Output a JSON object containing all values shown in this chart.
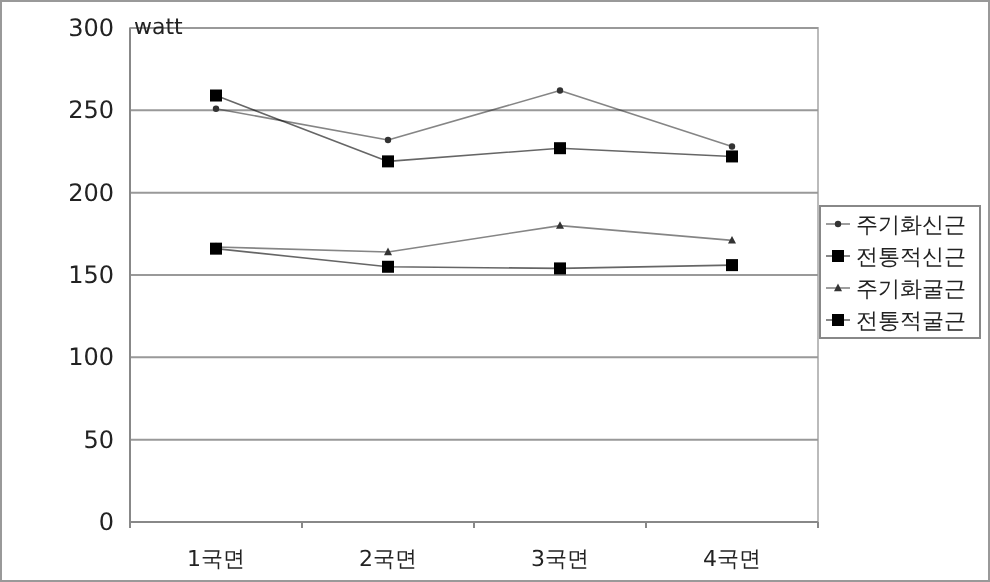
{
  "chart_data": {
    "type": "line",
    "ylabel": "watt",
    "categories": [
      "1국면",
      "2국면",
      "3국면",
      "4국면"
    ],
    "ylim": [
      0,
      300
    ],
    "yticks": [
      0,
      50,
      100,
      150,
      200,
      250,
      300
    ],
    "grid": "y",
    "legend": "right",
    "series": [
      {
        "name": "주기화신근",
        "color": "#333333",
        "marker": "circle",
        "values": [
          251,
          232,
          262,
          228
        ]
      },
      {
        "name": "전통적신근",
        "color": "#000000",
        "marker": "square",
        "values": [
          259,
          219,
          227,
          222
        ]
      },
      {
        "name": "주기화굴근",
        "color": "#333333",
        "marker": "triangle",
        "values": [
          167,
          164,
          180,
          171
        ]
      },
      {
        "name": "전통적굴근",
        "color": "#000000",
        "marker": "square",
        "values": [
          166,
          155,
          154,
          156
        ]
      }
    ]
  }
}
